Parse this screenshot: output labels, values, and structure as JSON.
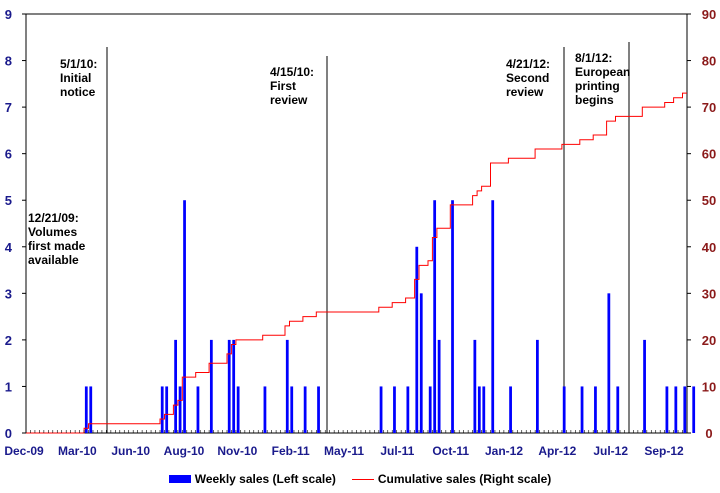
{
  "chart_data": {
    "type": "bar+line",
    "title": "",
    "x_tick_labels": [
      "Dec-09",
      "Mar-10",
      "Jun-10",
      "Aug-10",
      "Nov-10",
      "Feb-11",
      "May-11",
      "Jul-11",
      "Oct-11",
      "Jan-12",
      "Apr-12",
      "Jul-12",
      "Sep-12"
    ],
    "n_weeks": 148,
    "left_axis": {
      "ticks": [
        0,
        1,
        2,
        3,
        4,
        5,
        6,
        7,
        8,
        9
      ],
      "ylim": [
        0,
        9
      ],
      "color": "#1a1a8c"
    },
    "right_axis": {
      "ticks": [
        0,
        10,
        20,
        30,
        40,
        50,
        60,
        70,
        80,
        90
      ],
      "ylim": [
        0,
        90
      ],
      "color": "#8b1a1a"
    },
    "series": [
      {
        "name": "Weekly sales (Left scale)",
        "type": "bar",
        "color": "#0000ff",
        "axis": "left",
        "points": [
          [
            13,
            1
          ],
          [
            14,
            1
          ],
          [
            30,
            1
          ],
          [
            31,
            1
          ],
          [
            33,
            2
          ],
          [
            34,
            1
          ],
          [
            35,
            5
          ],
          [
            38,
            1
          ],
          [
            41,
            2
          ],
          [
            45,
            2
          ],
          [
            46,
            2
          ],
          [
            47,
            1
          ],
          [
            53,
            1
          ],
          [
            58,
            2
          ],
          [
            59,
            1
          ],
          [
            62,
            1
          ],
          [
            65,
            1
          ],
          [
            79,
            1
          ],
          [
            82,
            1
          ],
          [
            85,
            1
          ],
          [
            87,
            4
          ],
          [
            88,
            3
          ],
          [
            90,
            1
          ],
          [
            91,
            5
          ],
          [
            92,
            2
          ],
          [
            95,
            5
          ],
          [
            100,
            2
          ],
          [
            101,
            1
          ],
          [
            102,
            1
          ],
          [
            104,
            5
          ],
          [
            108,
            1
          ],
          [
            114,
            2
          ],
          [
            120,
            1
          ],
          [
            124,
            1
          ],
          [
            127,
            1
          ],
          [
            130,
            3
          ],
          [
            132,
            1
          ],
          [
            138,
            2
          ],
          [
            143,
            1
          ],
          [
            145,
            1
          ],
          [
            147,
            1
          ],
          [
            149,
            1
          ]
        ]
      },
      {
        "name": "Cumulative sales (Right scale)",
        "type": "line",
        "color": "#ff0000",
        "axis": "right"
      }
    ],
    "annotations": [
      {
        "week": 0,
        "lines": [
          "12/21/09:",
          "Volumes",
          "first made",
          "available"
        ],
        "vline": false
      },
      {
        "week": 20,
        "lines": [
          "5/1/10:",
          "Initial",
          "notice"
        ],
        "vline": true
      },
      {
        "week": 87,
        "lines": [
          "4/15/10:",
          "First",
          "review"
        ],
        "vline": true
      },
      {
        "week": 149,
        "lines": [
          "4/21/12:",
          "Second",
          "review"
        ],
        "vline": true
      },
      {
        "week": 164,
        "lines": [
          "8/1/12:",
          "European",
          "printing",
          "begins"
        ],
        "vline": true
      }
    ]
  },
  "legend": {
    "bar_label": "Weekly sales (Left scale)",
    "line_label": "Cumulative sales (Right scale)"
  }
}
